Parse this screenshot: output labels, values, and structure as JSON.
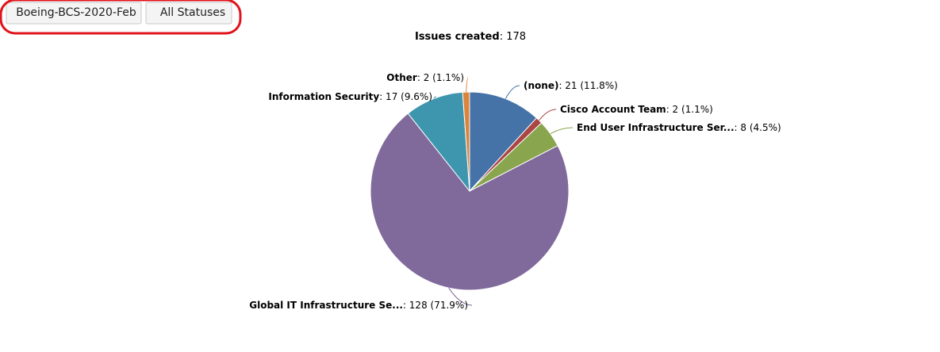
{
  "filters": [
    "Boeing-BCS-2020-Feb",
    "All Statuses"
  ],
  "chart_data": {
    "type": "pie",
    "title": "Issues created",
    "total_label": ": 178",
    "categories": [
      "(none)",
      "Cisco Account Team",
      "End User Infrastructure Ser...",
      "Global IT Infrastructure Se...",
      "Information Security",
      "Other"
    ],
    "values": [
      21,
      2,
      8,
      128,
      17,
      2
    ],
    "value_labels": [
      ": 21 (11.8%)",
      ": 2 (1.1%)",
      ": 8 (4.5%)",
      ": 128 (71.9%)",
      ": 17 (9.6%)",
      ": 2 (1.1%)"
    ],
    "colors": [
      "#4572a7",
      "#aa4643",
      "#89a54e",
      "#80699b",
      "#3d96ae",
      "#db843d"
    ]
  }
}
